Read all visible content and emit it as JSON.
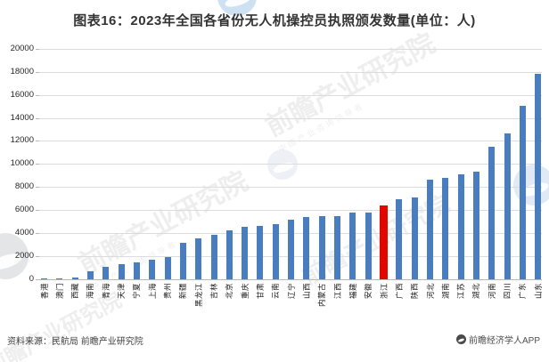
{
  "title": "图表16：2023年全国各省份无人机操控员执照颁发数量(单位：人)",
  "footer": {
    "source": "资料来源：民航局 前瞻产业研究院",
    "brand": "前瞻经济学人APP",
    "brand_icon": "qianzhan-logo-circle-icon"
  },
  "watermark": {
    "text": "前瞻产业研究院",
    "subtext": "中国产业咨询领导者",
    "logo_icon": "qianzhan-circle-watermark-icon"
  },
  "colors": {
    "bar": "#4a7dbd",
    "highlight": "#e10600",
    "grid": "#dcdcdc",
    "axis": "#b7b7b7",
    "title_text": "#333333",
    "tick_text": "#262626"
  },
  "chart_data": {
    "type": "bar",
    "title": "图表16：2023年全国各省份无人机操控员执照颁发数量(单位：人)",
    "xlabel": "",
    "ylabel": "",
    "unit": "人",
    "ylim": [
      0,
      20000
    ],
    "ytick_step": 2000,
    "yticks": [
      0,
      2000,
      4000,
      6000,
      8000,
      10000,
      12000,
      14000,
      16000,
      18000,
      20000
    ],
    "grid": true,
    "legend": "none",
    "highlight_index": 22,
    "highlight_category": "浙江",
    "categories": [
      "香港",
      "澳门",
      "西藏",
      "海南",
      "青海",
      "天津",
      "宁夏",
      "上海",
      "贵州",
      "新疆",
      "黑龙江",
      "吉林",
      "北京",
      "重庆",
      "甘肃",
      "云南",
      "辽宁",
      "山西",
      "内蒙古",
      "江西",
      "福建",
      "安徽",
      "浙江",
      "广西",
      "陕西",
      "河北",
      "湖南",
      "江苏",
      "湖北",
      "河南",
      "四川",
      "广东",
      "山东"
    ],
    "values": [
      30,
      60,
      130,
      720,
      1080,
      1300,
      1500,
      1700,
      1950,
      3180,
      3550,
      3850,
      4280,
      4600,
      4650,
      4820,
      5150,
      5450,
      5470,
      5500,
      5770,
      5790,
      6400,
      7000,
      7150,
      8650,
      8800,
      9100,
      9400,
      11500,
      12650,
      15100,
      17900
    ]
  }
}
